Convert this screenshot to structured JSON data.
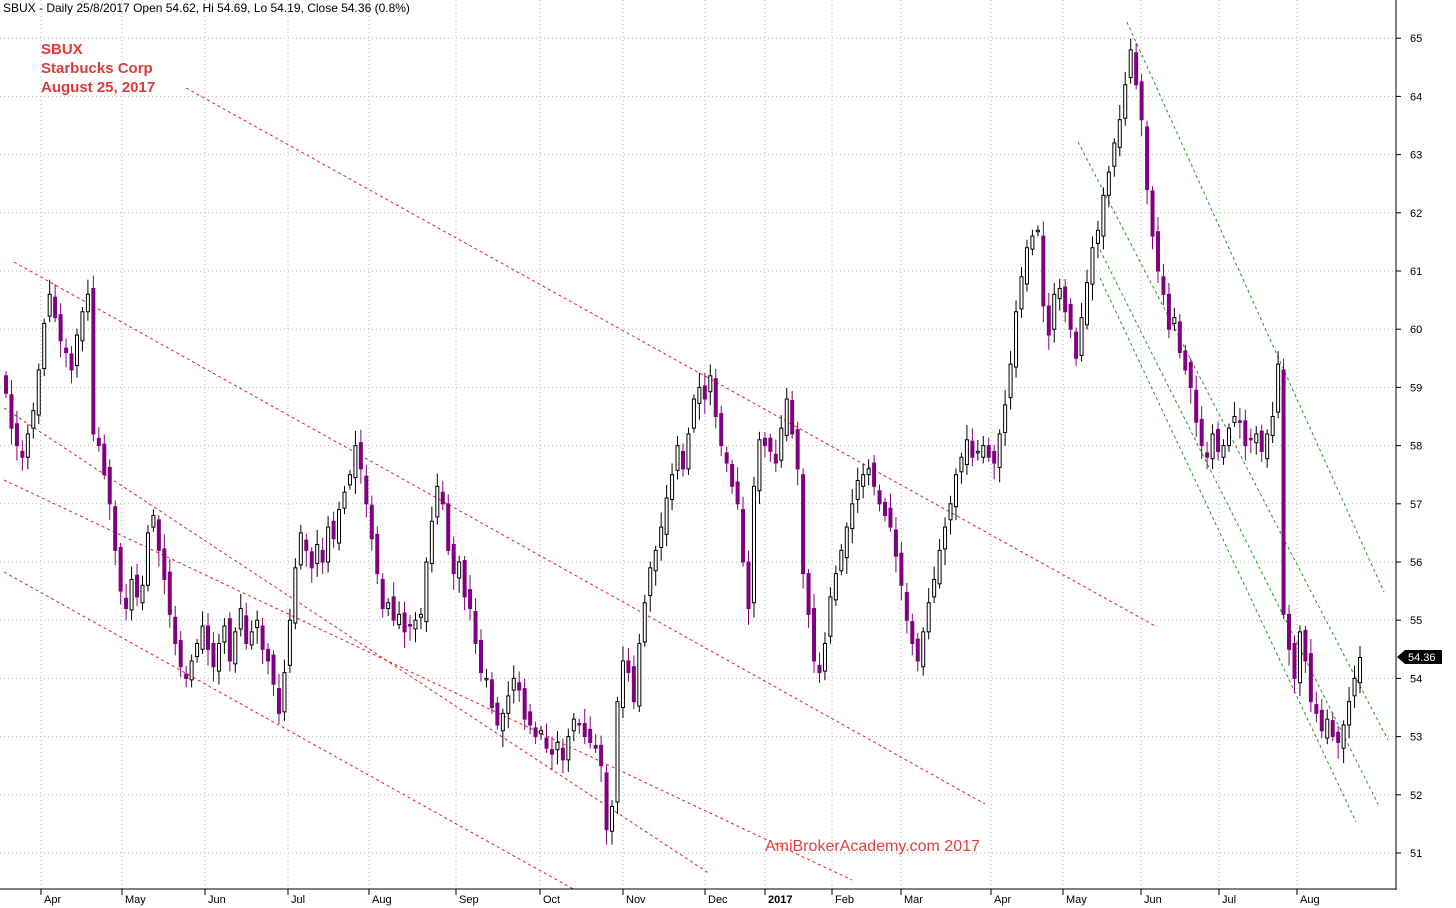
{
  "header": "SBUX - Daily 25/8/2017 Open 54.62, Hi 54.69, Lo 54.19, Close 54.36 (0.8%)",
  "annotation": {
    "line1": "SBUX",
    "line2": "Starbucks Corp",
    "line3": "August 25, 2017"
  },
  "watermark": "AmiBrokerAcademy.com  2017",
  "colors": {
    "up": "#000000",
    "down": "#800080",
    "channel_red": "#e02020",
    "channel_green": "#1a9a1a",
    "grid": "#b8b8b8",
    "lastbox": "#000000"
  },
  "chart_data": {
    "type": "candlestick",
    "ylim": [
      50.35,
      65.45
    ],
    "yticks": [
      51,
      52,
      53,
      54,
      55,
      56,
      57,
      58,
      59,
      60,
      61,
      62,
      63,
      64,
      65
    ],
    "xticks": [
      {
        "label": "Apr",
        "bold": false
      },
      {
        "label": "May",
        "bold": false
      },
      {
        "label": "Jun",
        "bold": false
      },
      {
        "label": "Jul",
        "bold": false
      },
      {
        "label": "Aug",
        "bold": false
      },
      {
        "label": "Sep",
        "bold": false
      },
      {
        "label": "Oct",
        "bold": false
      },
      {
        "label": "Nov",
        "bold": false
      },
      {
        "label": "Dec",
        "bold": false
      },
      {
        "label": "2017",
        "bold": true
      },
      {
        "label": "Feb",
        "bold": false
      },
      {
        "label": "Mar",
        "bold": false
      },
      {
        "label": "Apr",
        "bold": false
      },
      {
        "label": "May",
        "bold": false
      },
      {
        "label": "Jun",
        "bold": false
      },
      {
        "label": "Jul",
        "bold": false
      },
      {
        "label": "Aug",
        "bold": false
      }
    ],
    "last_close": "54.36",
    "closes": [
      58.9,
      58.3,
      58.0,
      57.8,
      58.2,
      58.6,
      59.3,
      60.1,
      60.6,
      60.2,
      59.8,
      59.6,
      59.3,
      59.9,
      60.3,
      60.6,
      58.2,
      58.0,
      57.5,
      57.0,
      56.2,
      55.5,
      55.2,
      55.7,
      55.4,
      55.6,
      56.5,
      56.8,
      56.2,
      55.7,
      55.1,
      54.6,
      54.2,
      54.0,
      54.3,
      54.6,
      54.9,
      54.5,
      54.2,
      54.6,
      54.9,
      54.3,
      54.8,
      55.2,
      54.6,
      54.8,
      55.0,
      54.5,
      54.3,
      53.9,
      53.4,
      54.1,
      55.0,
      55.9,
      56.5,
      56.2,
      55.9,
      56.3,
      56.0,
      56.6,
      56.4,
      56.9,
      57.2,
      57.5,
      58.0,
      57.6,
      57.0,
      56.4,
      55.8,
      55.2,
      55.3,
      55.0,
      55.1,
      54.8,
      54.9,
      55.0,
      55.1,
      56.0,
      56.7,
      57.3,
      57.0,
      56.2,
      55.8,
      56.0,
      55.4,
      55.2,
      54.6,
      54.1,
      54.0,
      53.5,
      53.2,
      53.4,
      53.7,
      54.0,
      53.8,
      53.3,
      53.2,
      53.0,
      53.1,
      52.8,
      52.7,
      52.9,
      52.6,
      53.0,
      53.3,
      53.2,
      53.0,
      52.9,
      52.8,
      52.5,
      51.4,
      51.8,
      53.6,
      54.3,
      54.1,
      53.6,
      54.6,
      55.3,
      55.9,
      56.2,
      56.6,
      57.1,
      57.5,
      58.0,
      57.6,
      58.2,
      58.8,
      59.0,
      58.8,
      59.2,
      58.5,
      58.0,
      57.7,
      57.3,
      57.0,
      56.0,
      55.2,
      57.3,
      58.1,
      58.0,
      57.9,
      57.7,
      58.3,
      58.8,
      58.2,
      57.6,
      55.8,
      55.1,
      54.3,
      54.1,
      54.6,
      55.4,
      55.8,
      56.2,
      56.6,
      57.0,
      57.4,
      57.5,
      57.6,
      57.3,
      57.0,
      56.8,
      56.6,
      56.1,
      55.6,
      55.0,
      54.6,
      54.3,
      54.8,
      55.3,
      55.7,
      56.2,
      56.6,
      57.0,
      57.5,
      57.8,
      58.1,
      57.8,
      57.9,
      58.0,
      57.8,
      57.7,
      58.2,
      58.7,
      59.4,
      60.3,
      60.9,
      61.4,
      61.6,
      61.7,
      60.4,
      59.9,
      60.6,
      60.7,
      60.3,
      60.0,
      59.5,
      60.2,
      60.8,
      61.4,
      61.7,
      62.3,
      62.7,
      63.2,
      63.6,
      64.2,
      64.8,
      64.2,
      63.6,
      62.4,
      61.6,
      61.0,
      60.6,
      60.0,
      60.2,
      59.6,
      59.3,
      59.0,
      58.4,
      58.0,
      57.8,
      58.2,
      57.9,
      58.0,
      58.3,
      58.5,
      58.4,
      58.0,
      58.1,
      58.2,
      57.9,
      58.2,
      58.5,
      59.4,
      55.1,
      54.5,
      54.0,
      54.8,
      54.3,
      53.6,
      53.4,
      53.1,
      53.3,
      53.0,
      52.9,
      53.2,
      53.6,
      54.0,
      54.36
    ]
  }
}
